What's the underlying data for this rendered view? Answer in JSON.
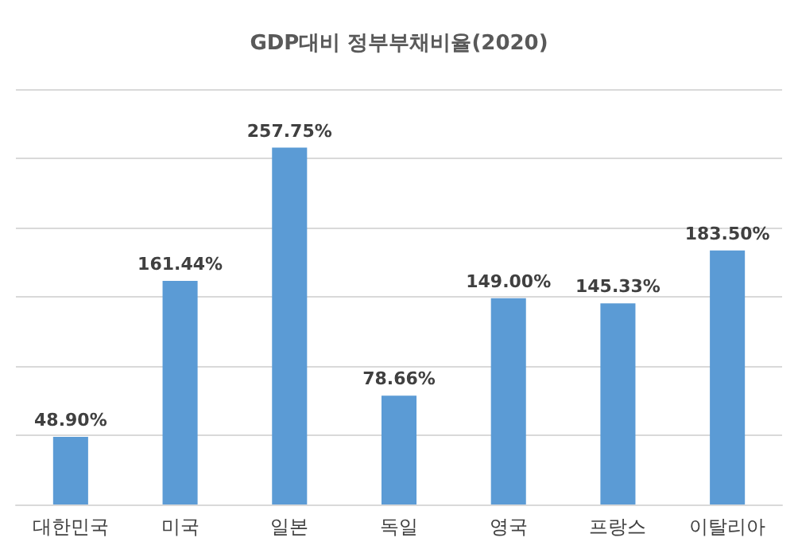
{
  "chart_data": {
    "type": "bar",
    "title": "GDP대비 정부부채비율(2020)",
    "categories": [
      "대한민국",
      "미국",
      "일본",
      "독일",
      "영국",
      "프랑스",
      "이탈리아"
    ],
    "values": [
      48.9,
      161.44,
      257.75,
      78.66,
      149.0,
      145.33,
      183.5
    ],
    "value_labels": [
      "48.90%",
      "161.44%",
      "257.75%",
      "78.66%",
      "149.00%",
      "145.33%",
      "183.50%"
    ],
    "color": "#5b9bd5",
    "ylim": [
      0,
      300
    ],
    "yticks": [
      {
        "value": 0,
        "label": null
      },
      {
        "value": 50,
        "label": null
      },
      {
        "value": 100,
        "label": null
      },
      {
        "value": 150,
        "label": null
      },
      {
        "value": 200,
        "label": null
      },
      {
        "value": 250,
        "label": null
      },
      {
        "value": 300,
        "label": null
      }
    ],
    "grid": "y",
    "tick_labels": "x"
  }
}
